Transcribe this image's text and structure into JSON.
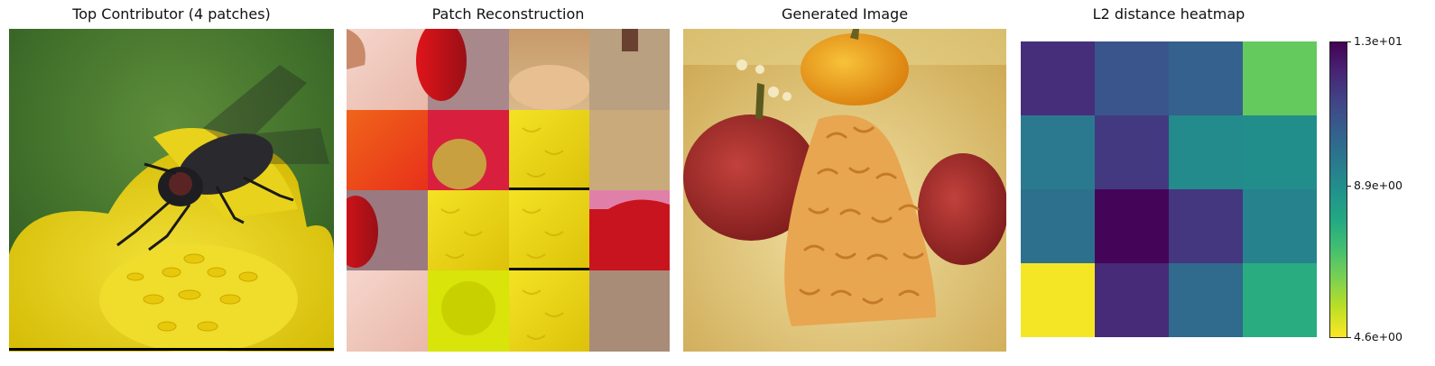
{
  "panels": {
    "contributor": {
      "title": "Top Contributor (4 patches)",
      "icon": "fly-on-yellow-flower-photo"
    },
    "reconstruction": {
      "title": "Patch Reconstruction",
      "icon": "patch-mosaic-photo"
    },
    "generated": {
      "title": "Generated Image",
      "icon": "red-peppers-and-grated-cheese-photo"
    }
  },
  "chart_data": {
    "type": "heatmap",
    "title": "L2 distance heatmap",
    "rows": 4,
    "cols": 4,
    "values": [
      [
        11.9,
        10.8,
        10.4,
        6.6
      ],
      [
        9.6,
        11.6,
        9.0,
        8.9
      ],
      [
        9.9,
        12.9,
        11.7,
        9.3
      ],
      [
        4.7,
        12.0,
        10.1,
        7.8
      ]
    ],
    "colormap": "viridis_r",
    "vmin": 4.6,
    "vmax": 13.0,
    "colorbar": {
      "ticks": [
        {
          "value": 13.0,
          "label": "1.3e+01"
        },
        {
          "value": 8.9,
          "label": "8.9e+00"
        },
        {
          "value": 4.6,
          "label": "4.6e+00"
        }
      ]
    }
  }
}
